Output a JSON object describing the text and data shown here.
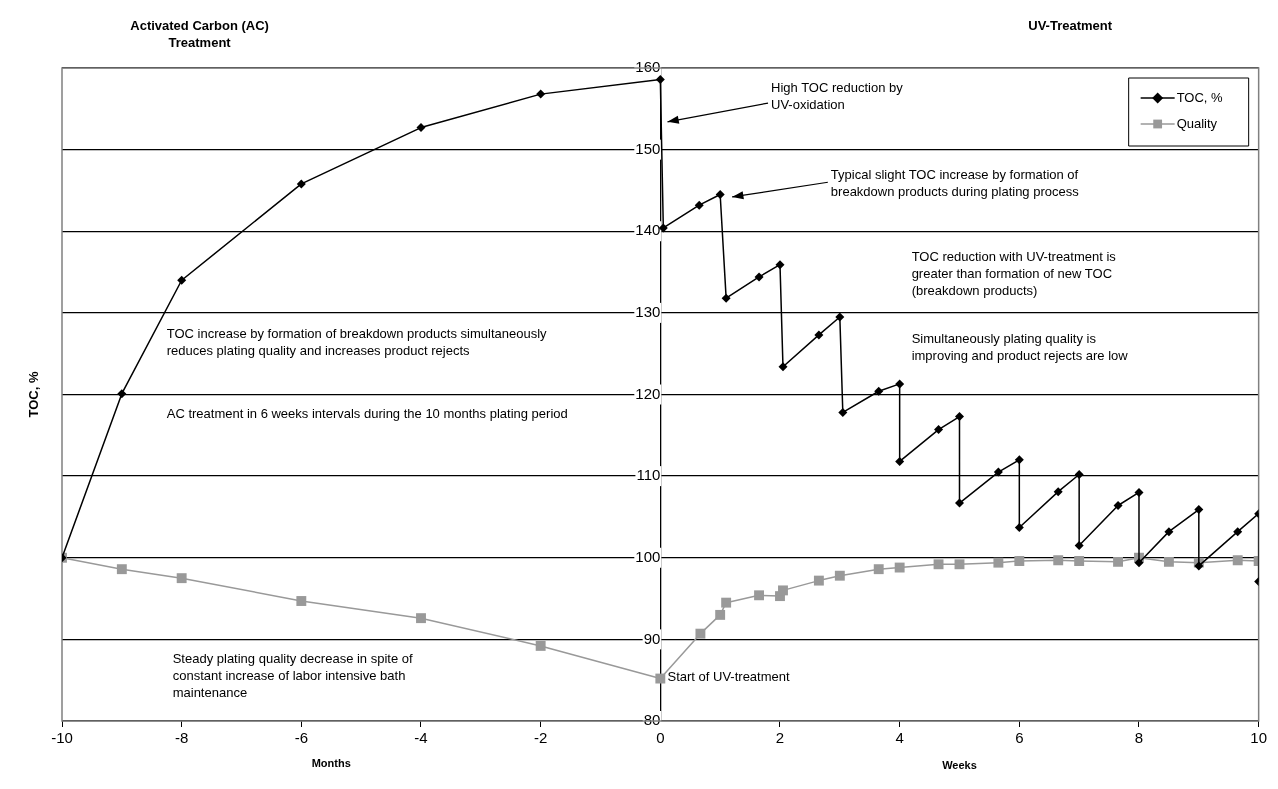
{
  "chart_data": {
    "type": "line",
    "ylabel": "TOC, %",
    "xlim": [
      -10,
      10
    ],
    "xticks": [
      -10,
      -8,
      -6,
      -4,
      -2,
      0,
      2,
      4,
      6,
      8,
      10
    ],
    "ylim": [
      80,
      160
    ],
    "yticks": [
      80,
      90,
      100,
      110,
      120,
      130,
      140,
      150,
      160
    ],
    "grid": "y",
    "legend": "top right",
    "line_style": "solid",
    "series": [
      {
        "name": "TOC, %",
        "color": "#000000",
        "marker": "diamond",
        "x": [
          -10,
          -9,
          -8,
          -6,
          -4,
          -2,
          0,
          0.05,
          0.65,
          1,
          1.1,
          1.65,
          2,
          2.05,
          2.65,
          3,
          3.05,
          3.65,
          4,
          4,
          4.65,
          5,
          5,
          5.65,
          6,
          6,
          6.65,
          7,
          7,
          7.65,
          8,
          8,
          8.5,
          9,
          9,
          9.65,
          10,
          10
        ],
        "values": [
          100,
          120.1,
          134,
          145.8,
          152.7,
          156.8,
          158.6,
          140.4,
          143.2,
          144.5,
          131.8,
          134.4,
          135.9,
          123.4,
          127.3,
          129.5,
          117.8,
          120.4,
          121.3,
          111.8,
          115.7,
          117.3,
          106.7,
          110.5,
          112,
          103.7,
          108.1,
          110.2,
          101.5,
          106.4,
          108,
          99.4,
          103.2,
          105.9,
          99,
          103.2,
          105.4,
          97.1
        ]
      },
      {
        "name": "Quality",
        "color": "#999999",
        "marker": "square",
        "x": [
          -10,
          -9,
          -8,
          -6,
          -4,
          -2,
          0,
          0.67,
          1,
          1.1,
          1.65,
          2,
          2.05,
          2.65,
          3,
          3.65,
          4,
          4.65,
          5,
          5.65,
          6,
          6.65,
          7,
          7.65,
          8,
          8.5,
          9,
          9.65,
          10
        ],
        "values": [
          100,
          98.6,
          97.5,
          94.7,
          92.6,
          89.2,
          85.2,
          90.7,
          93,
          94.5,
          95.4,
          95.3,
          96,
          97.2,
          97.8,
          98.6,
          98.8,
          99.2,
          99.2,
          99.4,
          99.6,
          99.7,
          99.6,
          99.5,
          100,
          99.5,
          99.4,
          99.7,
          99.6
        ]
      }
    ],
    "annotations": [
      "Activated Carbon (AC) Treatment",
      "UV-Treatment",
      "High TOC reduction by UV-oxidation",
      "Typical slight TOC increase by formation of breakdown products during plating process",
      "TOC reduction with UV-treatment is greater than formation of new TOC (breakdown products)",
      "Simultaneously plating quality is improving and product rejects are low",
      "TOC increase by formation of breakdown products simultaneously reduces plating quality and increases product rejects",
      "AC treatment in 6 weeks intervals during the 10 months plating period",
      "Steady plating quality decrease in spite of constant increase of labor intensive bath maintenance",
      {
        "text": "Start of UV-treatment",
        "x": 0,
        "y": 85.2
      },
      "Months",
      "Weeks"
    ]
  }
}
